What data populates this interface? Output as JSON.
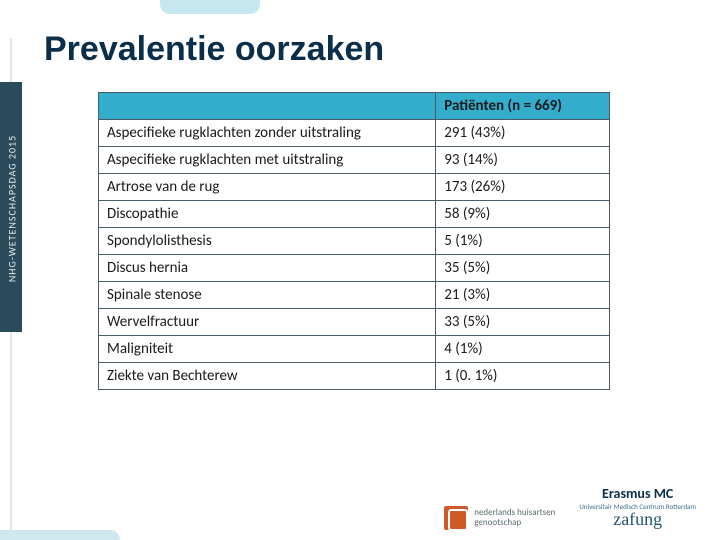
{
  "title": "Prevalentie oorzaken",
  "sidebar_text": "NHG-WETENSCHAPSDAG 2015",
  "table": {
    "type": "table",
    "header_bg": "#34accc",
    "border_color": "#4a5d66",
    "columns": [
      {
        "label": "",
        "width_pct": 66
      },
      {
        "label": "Patiënten (n = 669)",
        "width_pct": 34
      }
    ],
    "rows": [
      [
        "Aspecifieke rugklachten zonder uitstraling",
        "291 (43%)"
      ],
      [
        "Aspecifieke rugklachten met uitstraling",
        "93 (14%)"
      ],
      [
        "Artrose van de rug",
        "173 (26%)"
      ],
      [
        "Discopathie",
        "58 (9%)"
      ],
      [
        "Spondylolisthesis",
        "5 (1%)"
      ],
      [
        "Discus hernia",
        "35 (5%)"
      ],
      [
        "Spinale stenose",
        "21 (3%)"
      ],
      [
        "Wervelfractuur",
        "33 (5%)"
      ],
      [
        "Maligniteit",
        "4 (1%)"
      ],
      [
        "Ziekte van Bechterew",
        "1 (0. 1%)"
      ]
    ],
    "font_size": 15,
    "text_color": "#1a1a1a"
  },
  "colors": {
    "title": "#0b2f4a",
    "sidebar": "#2b4b5a",
    "accent_light": "#cfe7ef",
    "nhg_block": "#d05a2a",
    "background": "#ffffff"
  },
  "logos": {
    "nhg_line1": "nederlands huisartsen",
    "nhg_line2": "genootschap",
    "emc_name": "Erasmus MC",
    "emc_sub": "Universitair Medisch Centrum Rotterdam",
    "emc_sig": "zafung"
  }
}
